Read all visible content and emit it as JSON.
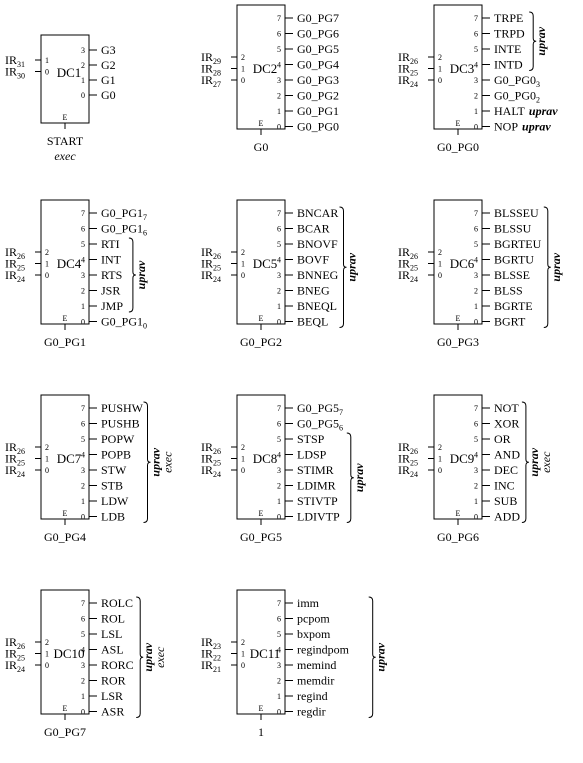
{
  "decoders": [
    {
      "name": "DC1",
      "inputs": [
        {
          "base": "IR",
          "sub": "31"
        },
        {
          "base": "IR",
          "sub": "30"
        }
      ],
      "input_pins": [
        "1",
        "0"
      ],
      "outputs": [
        {
          "base": "G3",
          "sub": ""
        },
        {
          "base": "G2",
          "sub": ""
        },
        {
          "base": "G1",
          "sub": ""
        },
        {
          "base": "G0",
          "sub": ""
        }
      ],
      "output_pins": [
        "3",
        "2",
        "1",
        "0"
      ],
      "enable": "E",
      "bottom": [
        "START",
        "exec"
      ],
      "groups": []
    },
    {
      "name": "DC2",
      "inputs": [
        {
          "base": "IR",
          "sub": "29"
        },
        {
          "base": "IR",
          "sub": "28"
        },
        {
          "base": "IR",
          "sub": "27"
        }
      ],
      "input_pins": [
        "2",
        "1",
        "0"
      ],
      "outputs": [
        {
          "base": "G0_PG7",
          "sub": ""
        },
        {
          "base": "G0_PG6",
          "sub": ""
        },
        {
          "base": "G0_PG5",
          "sub": ""
        },
        {
          "base": "G0_PG4",
          "sub": ""
        },
        {
          "base": "G0_PG3",
          "sub": ""
        },
        {
          "base": "G0_PG2",
          "sub": ""
        },
        {
          "base": "G0_PG1",
          "sub": ""
        },
        {
          "base": "G0_PG0",
          "sub": ""
        }
      ],
      "output_pins": [
        "7",
        "6",
        "5",
        "4",
        "3",
        "2",
        "1",
        "0"
      ],
      "enable": "E",
      "bottom": [
        "G0"
      ],
      "groups": []
    },
    {
      "name": "DC3",
      "inputs": [
        {
          "base": "IR",
          "sub": "26"
        },
        {
          "base": "IR",
          "sub": "25"
        },
        {
          "base": "IR",
          "sub": "24"
        }
      ],
      "input_pins": [
        "2",
        "1",
        "0"
      ],
      "outputs": [
        {
          "base": "TRPE",
          "sub": ""
        },
        {
          "base": "TRPD",
          "sub": ""
        },
        {
          "base": "INTE",
          "sub": ""
        },
        {
          "base": "INTD",
          "sub": ""
        },
        {
          "base": "G0_PG0",
          "sub": "3"
        },
        {
          "base": "G0_PG0",
          "sub": "2"
        },
        {
          "base": "HALT",
          "sub": "",
          "suffix": "uprav"
        },
        {
          "base": "NOP",
          "sub": "",
          "suffix": "uprav"
        }
      ],
      "output_pins": [
        "7",
        "6",
        "5",
        "4",
        "3",
        "2",
        "1",
        "0"
      ],
      "enable": "E",
      "bottom": [
        "G0_PG0"
      ],
      "groups": [
        {
          "from": 0,
          "to": 3,
          "labels": [
            "uprav"
          ]
        }
      ]
    },
    {
      "name": "DC4",
      "inputs": [
        {
          "base": "IR",
          "sub": "26"
        },
        {
          "base": "IR",
          "sub": "25"
        },
        {
          "base": "IR",
          "sub": "24"
        }
      ],
      "input_pins": [
        "2",
        "1",
        "0"
      ],
      "outputs": [
        {
          "base": "G0_PG1",
          "sub": "7"
        },
        {
          "base": "G0_PG1",
          "sub": "6"
        },
        {
          "base": "RTI",
          "sub": ""
        },
        {
          "base": "INT",
          "sub": ""
        },
        {
          "base": "RTS",
          "sub": ""
        },
        {
          "base": "JSR",
          "sub": ""
        },
        {
          "base": "JMP",
          "sub": ""
        },
        {
          "base": "G0_PG1",
          "sub": "0"
        }
      ],
      "output_pins": [
        "7",
        "6",
        "5",
        "4",
        "3",
        "2",
        "1",
        "0"
      ],
      "enable": "E",
      "bottom": [
        "G0_PG1"
      ],
      "groups": [
        {
          "from": 2,
          "to": 6,
          "labels": [
            "uprav"
          ]
        }
      ]
    },
    {
      "name": "DC5",
      "inputs": [
        {
          "base": "IR",
          "sub": "26"
        },
        {
          "base": "IR",
          "sub": "25"
        },
        {
          "base": "IR",
          "sub": "24"
        }
      ],
      "input_pins": [
        "2",
        "1",
        "0"
      ],
      "outputs": [
        {
          "base": "BNCAR",
          "sub": ""
        },
        {
          "base": "BCAR",
          "sub": ""
        },
        {
          "base": "BNOVF",
          "sub": ""
        },
        {
          "base": "BOVF",
          "sub": ""
        },
        {
          "base": "BNNEG",
          "sub": ""
        },
        {
          "base": "BNEG",
          "sub": ""
        },
        {
          "base": "BNEQL",
          "sub": ""
        },
        {
          "base": "BEQL",
          "sub": ""
        }
      ],
      "output_pins": [
        "7",
        "6",
        "5",
        "4",
        "3",
        "2",
        "1",
        "0"
      ],
      "enable": "E",
      "bottom": [
        "G0_PG2"
      ],
      "groups": [
        {
          "from": 0,
          "to": 7,
          "labels": [
            "uprav"
          ]
        }
      ]
    },
    {
      "name": "DC6",
      "inputs": [
        {
          "base": "IR",
          "sub": "26"
        },
        {
          "base": "IR",
          "sub": "25"
        },
        {
          "base": "IR",
          "sub": "24"
        }
      ],
      "input_pins": [
        "2",
        "1",
        "0"
      ],
      "outputs": [
        {
          "base": "BLSSEU",
          "sub": ""
        },
        {
          "base": "BLSSU",
          "sub": ""
        },
        {
          "base": "BGRTEU",
          "sub": ""
        },
        {
          "base": "BGRTU",
          "sub": ""
        },
        {
          "base": "BLSSE",
          "sub": ""
        },
        {
          "base": "BLSS",
          "sub": ""
        },
        {
          "base": "BGRTE",
          "sub": ""
        },
        {
          "base": "BGRT",
          "sub": ""
        }
      ],
      "output_pins": [
        "7",
        "6",
        "5",
        "4",
        "3",
        "2",
        "1",
        "0"
      ],
      "enable": "E",
      "bottom": [
        "G0_PG3"
      ],
      "groups": [
        {
          "from": 0,
          "to": 7,
          "labels": [
            "uprav"
          ]
        }
      ]
    },
    {
      "name": "DC7",
      "inputs": [
        {
          "base": "IR",
          "sub": "26"
        },
        {
          "base": "IR",
          "sub": "25"
        },
        {
          "base": "IR",
          "sub": "24"
        }
      ],
      "input_pins": [
        "2",
        "1",
        "0"
      ],
      "outputs": [
        {
          "base": "PUSHW",
          "sub": ""
        },
        {
          "base": "PUSHB",
          "sub": ""
        },
        {
          "base": "POPW",
          "sub": ""
        },
        {
          "base": "POPB",
          "sub": ""
        },
        {
          "base": "STW",
          "sub": ""
        },
        {
          "base": "STB",
          "sub": ""
        },
        {
          "base": "LDW",
          "sub": ""
        },
        {
          "base": "LDB",
          "sub": ""
        }
      ],
      "output_pins": [
        "7",
        "6",
        "5",
        "4",
        "3",
        "2",
        "1",
        "0"
      ],
      "enable": "E",
      "bottom": [
        "G0_PG4"
      ],
      "groups": [
        {
          "from": 0,
          "to": 7,
          "labels": [
            "uprav",
            "exec"
          ]
        }
      ]
    },
    {
      "name": "DC8",
      "inputs": [
        {
          "base": "IR",
          "sub": "26"
        },
        {
          "base": "IR",
          "sub": "25"
        },
        {
          "base": "IR",
          "sub": "24"
        }
      ],
      "input_pins": [
        "2",
        "1",
        "0"
      ],
      "outputs": [
        {
          "base": "G0_PG5",
          "sub": "7"
        },
        {
          "base": "G0_PG5",
          "sub": "6"
        },
        {
          "base": "STSP",
          "sub": ""
        },
        {
          "base": "LDSP",
          "sub": ""
        },
        {
          "base": "STIMR",
          "sub": ""
        },
        {
          "base": "LDIMR",
          "sub": ""
        },
        {
          "base": "STIVTP",
          "sub": ""
        },
        {
          "base": "LDIVTP",
          "sub": ""
        }
      ],
      "output_pins": [
        "7",
        "6",
        "5",
        "4",
        "3",
        "2",
        "1",
        "0"
      ],
      "enable": "E",
      "bottom": [
        "G0_PG5"
      ],
      "groups": [
        {
          "from": 2,
          "to": 7,
          "labels": [
            "uprav"
          ]
        }
      ]
    },
    {
      "name": "DC9",
      "inputs": [
        {
          "base": "IR",
          "sub": "26"
        },
        {
          "base": "IR",
          "sub": "25"
        },
        {
          "base": "IR",
          "sub": "24"
        }
      ],
      "input_pins": [
        "2",
        "1",
        "0"
      ],
      "outputs": [
        {
          "base": "NOT",
          "sub": ""
        },
        {
          "base": "XOR",
          "sub": ""
        },
        {
          "base": "OR",
          "sub": ""
        },
        {
          "base": "AND",
          "sub": ""
        },
        {
          "base": "DEC",
          "sub": ""
        },
        {
          "base": "INC",
          "sub": ""
        },
        {
          "base": "SUB",
          "sub": ""
        },
        {
          "base": "ADD",
          "sub": ""
        }
      ],
      "output_pins": [
        "7",
        "6",
        "5",
        "4",
        "3",
        "2",
        "1",
        "0"
      ],
      "enable": "E",
      "bottom": [
        "G0_PG6"
      ],
      "groups": [
        {
          "from": 0,
          "to": 7,
          "labels": [
            "uprav",
            "exec"
          ]
        }
      ]
    },
    {
      "name": "DC10",
      "inputs": [
        {
          "base": "IR",
          "sub": "26"
        },
        {
          "base": "IR",
          "sub": "25"
        },
        {
          "base": "IR",
          "sub": "24"
        }
      ],
      "input_pins": [
        "2",
        "1",
        "0"
      ],
      "outputs": [
        {
          "base": "ROLC",
          "sub": ""
        },
        {
          "base": "ROL",
          "sub": ""
        },
        {
          "base": "LSL",
          "sub": ""
        },
        {
          "base": "ASL",
          "sub": ""
        },
        {
          "base": "RORC",
          "sub": ""
        },
        {
          "base": "ROR",
          "sub": ""
        },
        {
          "base": "LSR",
          "sub": ""
        },
        {
          "base": "ASR",
          "sub": ""
        }
      ],
      "output_pins": [
        "7",
        "6",
        "5",
        "4",
        "3",
        "2",
        "1",
        "0"
      ],
      "enable": "E",
      "bottom": [
        "G0_PG7"
      ],
      "groups": [
        {
          "from": 0,
          "to": 7,
          "labels": [
            "uprav",
            "exec"
          ]
        }
      ]
    },
    {
      "name": "DC11",
      "inputs": [
        {
          "base": "IR",
          "sub": "23"
        },
        {
          "base": "IR",
          "sub": "22"
        },
        {
          "base": "IR",
          "sub": "21"
        }
      ],
      "input_pins": [
        "2",
        "1",
        "0"
      ],
      "outputs": [
        {
          "base": "imm",
          "sub": ""
        },
        {
          "base": "pcpom",
          "sub": ""
        },
        {
          "base": "bxpom",
          "sub": ""
        },
        {
          "base": "regindpom",
          "sub": ""
        },
        {
          "base": "memind",
          "sub": ""
        },
        {
          "base": "memdir",
          "sub": ""
        },
        {
          "base": "regind",
          "sub": ""
        },
        {
          "base": "regdir",
          "sub": ""
        }
      ],
      "output_pins": [
        "7",
        "6",
        "5",
        "4",
        "3",
        "2",
        "1",
        "0"
      ],
      "enable": "E",
      "bottom": [
        "1"
      ],
      "groups": [
        {
          "from": 0,
          "to": 7,
          "labels": [
            "uprav"
          ]
        }
      ]
    }
  ]
}
